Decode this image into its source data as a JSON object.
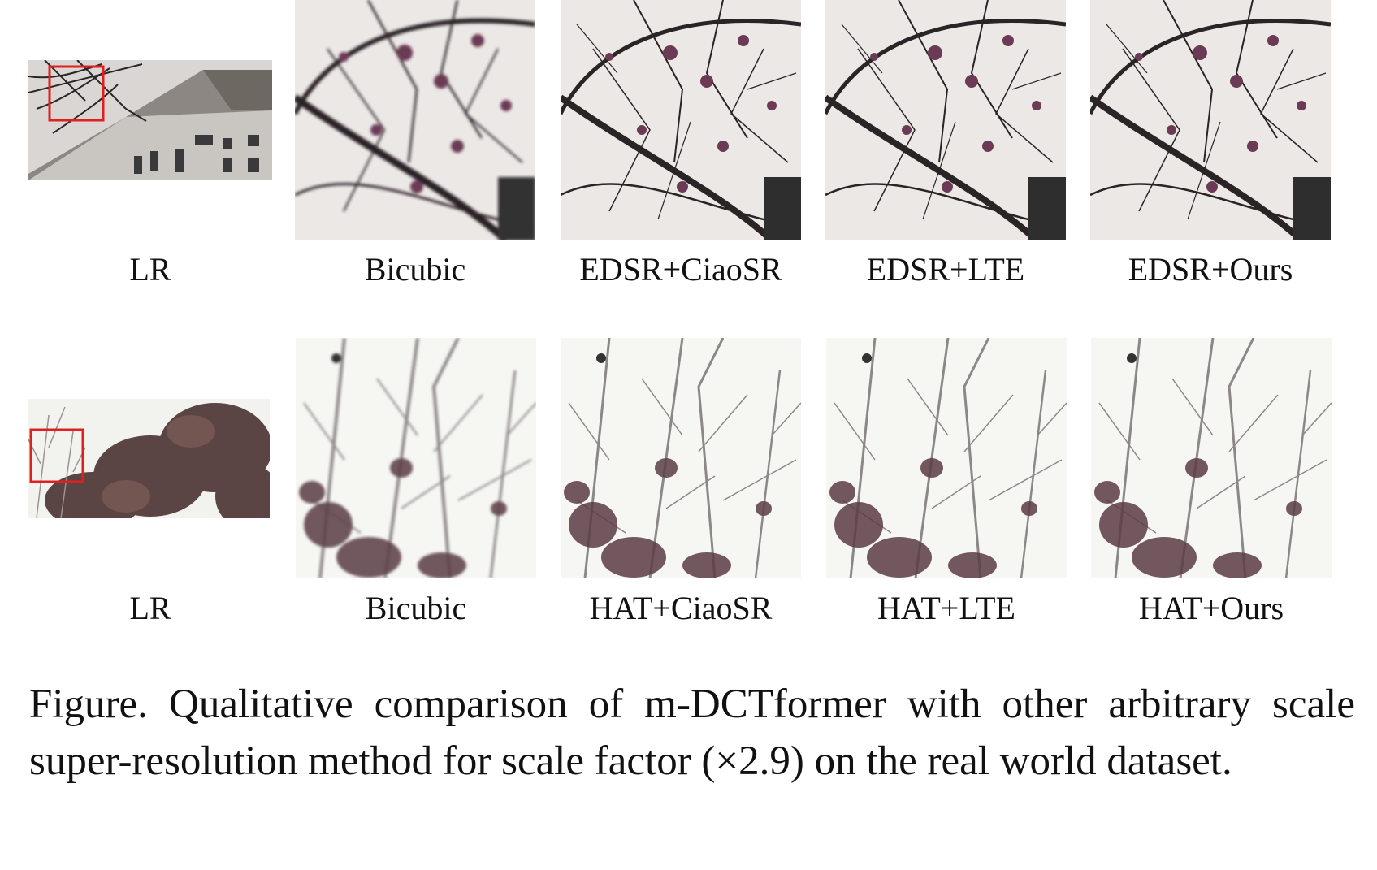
{
  "rows": [
    {
      "panels": [
        {
          "label": "LR",
          "scene": "building"
        },
        {
          "label": "Bicubic",
          "scene": "branches-blur"
        },
        {
          "label": "EDSR+CiaoSR",
          "scene": "branches"
        },
        {
          "label": "EDSR+LTE",
          "scene": "branches"
        },
        {
          "label": "EDSR+Ours",
          "scene": "branches"
        }
      ]
    },
    {
      "panels": [
        {
          "label": "LR",
          "scene": "trees"
        },
        {
          "label": "Bicubic",
          "scene": "twigs-blur"
        },
        {
          "label": "HAT+CiaoSR",
          "scene": "twigs"
        },
        {
          "label": "HAT+LTE",
          "scene": "twigs"
        },
        {
          "label": "HAT+Ours",
          "scene": "twigs"
        }
      ]
    }
  ],
  "colors": {
    "zoom_box": "#e02020",
    "sky_row1": "#ece8e6",
    "sky_row2": "#f6f6f2",
    "branch": "#2b2426",
    "blossom": "#6b3a55"
  },
  "caption": "Figure. Qualitative comparison of m-DCTformer with other arbitrary scale super-resolution method for scale factor (×2.9) on the real world dataset."
}
